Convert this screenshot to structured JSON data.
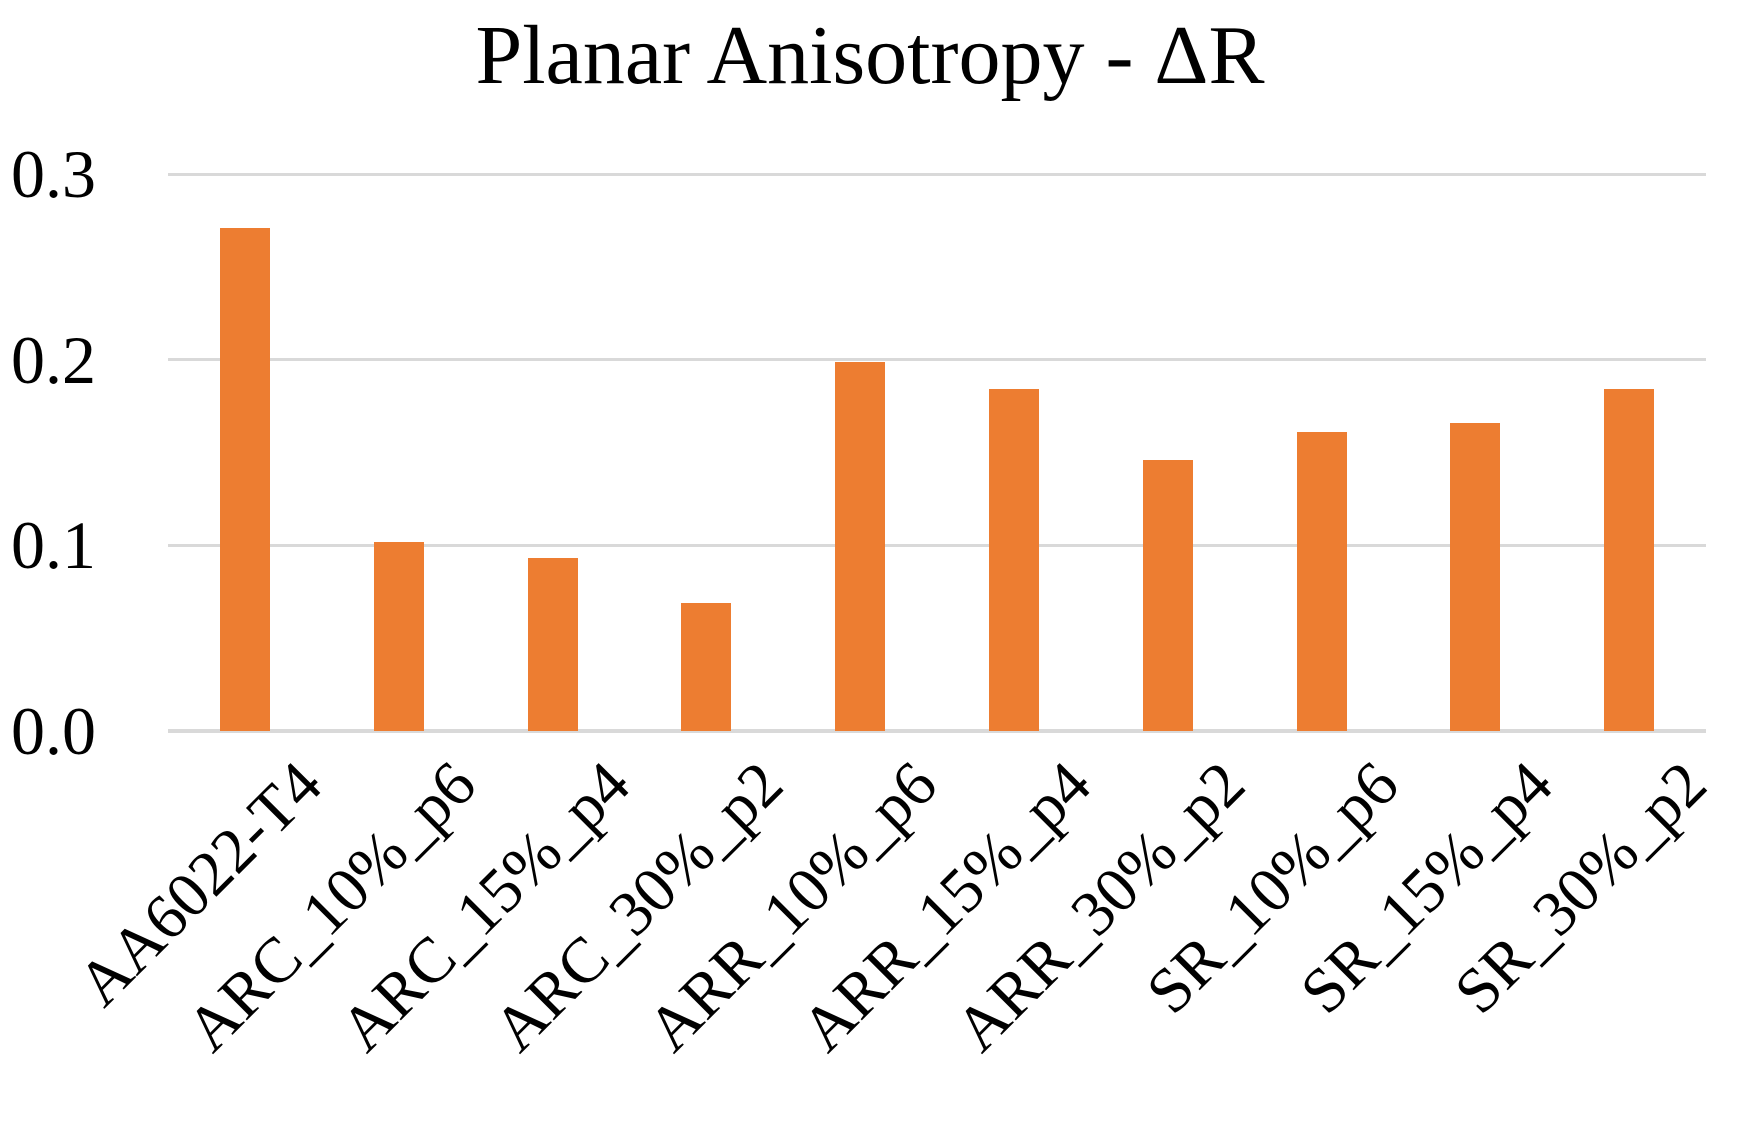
{
  "page": {
    "background": "#FFFFFF"
  },
  "chart_data": {
    "type": "bar",
    "title": "Planar Anisotropy - ΔR",
    "categories": [
      "AA6022-T4",
      "ARC_10%_p6",
      "ARC_15%_p4",
      "ARC_30%_p2",
      "ARR_10%_p6",
      "ARR_15%_p4",
      "ARR_30%_p2",
      "SR_10%_p6",
      "SR_15%_p4",
      "SR_30%_p2"
    ],
    "values": [
      0.271,
      0.102,
      0.093,
      0.069,
      0.199,
      0.184,
      0.146,
      0.161,
      0.166,
      0.184
    ],
    "xlabel": "",
    "ylabel": "",
    "ylim": [
      0,
      0.3
    ],
    "yticks": [
      0,
      0.1,
      0.2,
      0.3
    ],
    "ytick_labels": [
      "0.0",
      "0.1",
      "0.2",
      "0.3"
    ],
    "grid": "horizontal",
    "legend": "none",
    "bar_color": "#ED7D31",
    "gridline_color": "#D9D9D9",
    "axis_line_color": "#D9D9D9",
    "text_color": "#000000",
    "x_tick_rotation_deg": 45
  }
}
